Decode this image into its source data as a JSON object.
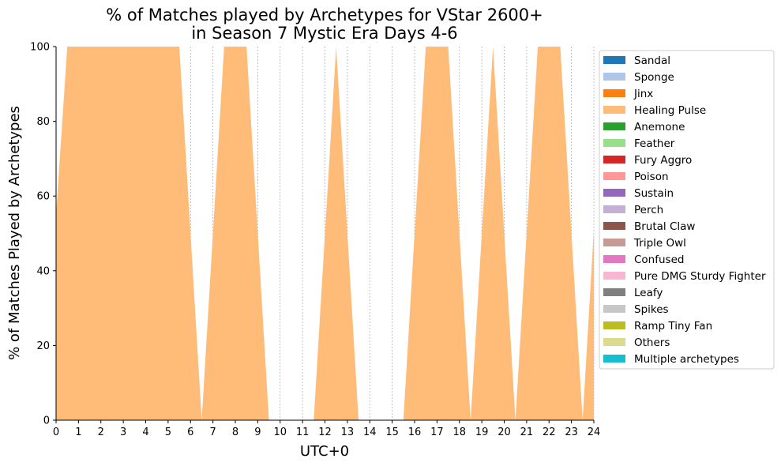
{
  "chart_data": {
    "type": "area",
    "title_lines": [
      "% of Matches played by Archetypes for VStar 2600+",
      "in Season 7 Mystic Era Days 4-6"
    ],
    "xlabel": "UTC+0",
    "ylabel": "% of Matches Played by Archetypes",
    "xlim": [
      0,
      24
    ],
    "ylim": [
      0,
      100
    ],
    "x_ticks": [
      "0",
      "1",
      "2",
      "3",
      "4",
      "5",
      "6",
      "7",
      "8",
      "9",
      "10",
      "11",
      "12",
      "13",
      "14",
      "15",
      "16",
      "17",
      "18",
      "19",
      "20",
      "21",
      "22",
      "23",
      "24"
    ],
    "y_ticks": [
      "0",
      "20",
      "40",
      "60",
      "80",
      "100"
    ],
    "grid": "vertical dashed at each hour",
    "legend_position": "right, outside",
    "series": [
      {
        "name": "Sandal",
        "color": "#1f77b4"
      },
      {
        "name": "Sponge",
        "color": "#aec7e8"
      },
      {
        "name": "Jinx",
        "color": "#ff7f0e"
      },
      {
        "name": "Healing Pulse",
        "color": "#ffbb78",
        "x": [
          0,
          0.5,
          5.5,
          6.5,
          7.5,
          8.5,
          9.5,
          10.5,
          11.5,
          12.5,
          13.5,
          14.5,
          15.5,
          16.5,
          17.5,
          18.5,
          19.5,
          20.5,
          21.5,
          22.5,
          23.5,
          24
        ],
        "values": [
          55,
          100,
          100,
          0,
          100,
          100,
          0,
          0,
          0,
          100,
          0,
          0,
          0,
          100,
          100,
          0,
          100,
          0,
          100,
          100,
          0,
          51
        ]
      },
      {
        "name": "Anemone",
        "color": "#2ca02c"
      },
      {
        "name": "Feather",
        "color": "#98df8a"
      },
      {
        "name": "Fury Aggro",
        "color": "#d62728"
      },
      {
        "name": "Poison",
        "color": "#ff9896"
      },
      {
        "name": "Sustain",
        "color": "#9467bd"
      },
      {
        "name": "Perch",
        "color": "#c5b0d5"
      },
      {
        "name": "Brutal Claw",
        "color": "#8c564b"
      },
      {
        "name": "Triple Owl",
        "color": "#c49c94"
      },
      {
        "name": "Confused",
        "color": "#e377c2"
      },
      {
        "name": "Pure DMG Sturdy Fighter",
        "color": "#f7b6d2"
      },
      {
        "name": "Leafy",
        "color": "#7f7f7f"
      },
      {
        "name": "Spikes",
        "color": "#c7c7c7"
      },
      {
        "name": "Ramp Tiny Fan",
        "color": "#bcbd22"
      },
      {
        "name": "Others",
        "color": "#dbdb8d"
      },
      {
        "name": "Multiple archetypes",
        "color": "#17becf"
      }
    ]
  }
}
